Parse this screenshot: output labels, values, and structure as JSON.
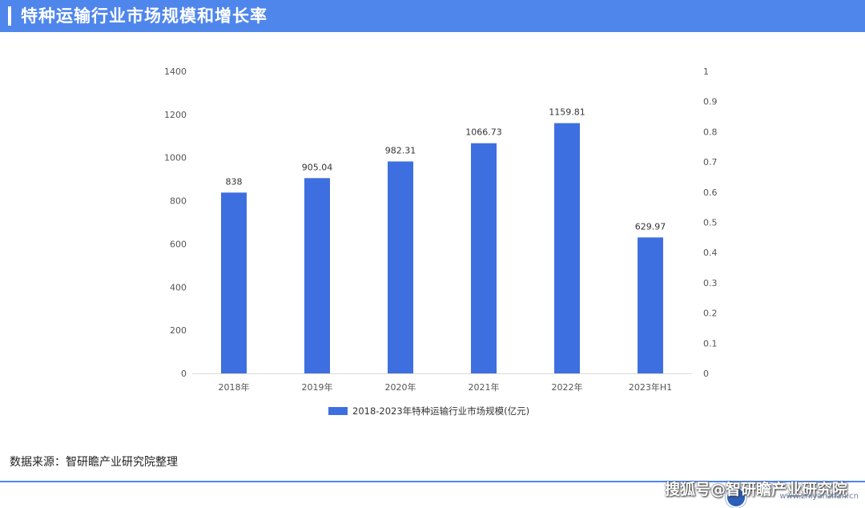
{
  "header": {
    "title": "特种运输行业市场规模和增长率"
  },
  "chart_data": {
    "type": "bar",
    "categories": [
      "2018年",
      "2019年",
      "2020年",
      "2021年",
      "2022年",
      "2023年H1"
    ],
    "series": [
      {
        "name": "2018-2023年特种运输行业市场规模(亿元)",
        "values": [
          838,
          905.04,
          982.31,
          1066.73,
          1159.81,
          629.97
        ],
        "labels": [
          "838",
          "905.04",
          "982.31",
          "1066.73",
          "1159.81",
          "629.97"
        ],
        "color": "#3e6fe0"
      }
    ],
    "y_left": {
      "ylim": [
        0,
        1400
      ],
      "ticks": [
        "0",
        "200",
        "400",
        "600",
        "800",
        "1000",
        "1200",
        "1400"
      ]
    },
    "y_right": {
      "ylim": [
        0,
        1
      ],
      "ticks": [
        "0",
        "0.1",
        "0.2",
        "0.3",
        "0.4",
        "0.5",
        "0.6",
        "0.7",
        "0.8",
        "0.9",
        "1"
      ]
    },
    "grid": false,
    "legend_position": "bottom"
  },
  "source": {
    "text": "数据来源：智研瞻产业研究院整理"
  },
  "footer": {
    "brand": "搜狐号@智研瞻产业研究院",
    "url": "www.zhiyanzhan.cn"
  },
  "watermark": {
    "text": "智研瞻产业研究院"
  }
}
